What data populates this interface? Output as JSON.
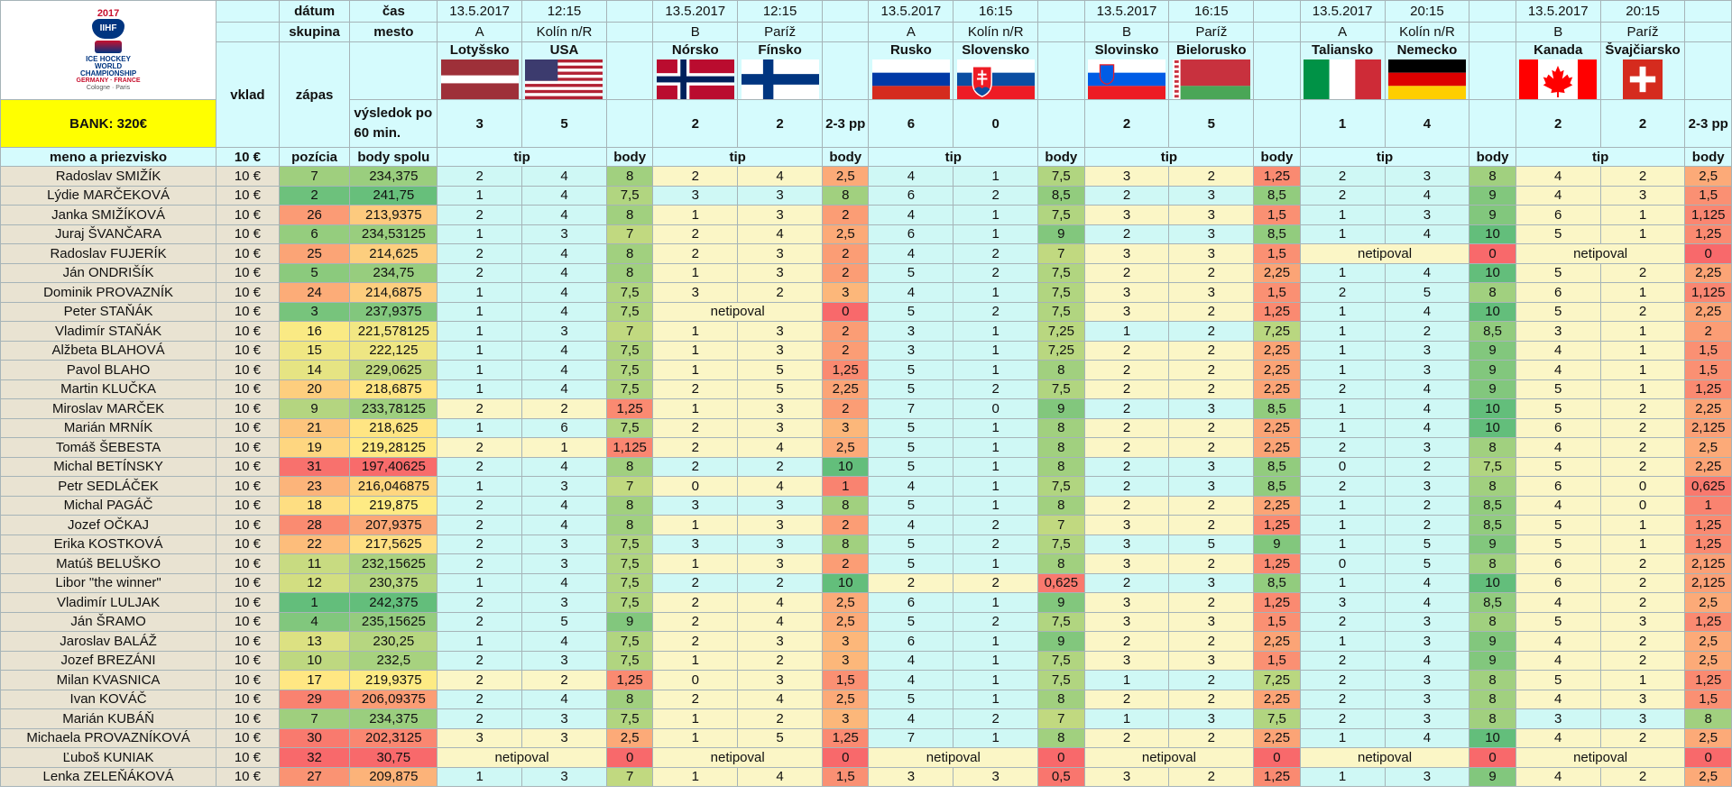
{
  "header": {
    "datum_label": "dátum",
    "cas_label": "čas",
    "skupina_label": "skupina",
    "mesto_label": "mesto",
    "vklad_label": "vklad",
    "zapas_label": "zápas",
    "vysledok_label": "výsledok po 60 min.",
    "bank_label": "BANK: 320€",
    "meno_label": "meno a priezvisko",
    "vklad_amount": "10 €",
    "pozicia_label": "pozícia",
    "body_spolu_label": "body spolu",
    "tip_label": "tip",
    "body_label": "body",
    "logo": {
      "year": "2017",
      "brand": "IIHF",
      "line1": "ICE HOCKEY",
      "line2": "WORLD",
      "line3": "CHAMPIONSHIP",
      "line4": "GERMANY · FRANCE",
      "line5": "Cologne · Paris"
    }
  },
  "colors": {
    "header_bg": "#d5fbfd",
    "bank_bg": "#ffff00",
    "name_bg": "#e9e3d2",
    "grid": "#a6b4b8"
  },
  "matches": [
    {
      "date": "13.5.2017",
      "time": "12:15",
      "group": "A",
      "city": "Kolín n/R",
      "team1": "Lotyšsko",
      "team2": "USA",
      "flag1": "latvia",
      "flag2": "usa",
      "score1": "3",
      "score2": "5",
      "extra": ""
    },
    {
      "date": "13.5.2017",
      "time": "12:15",
      "group": "B",
      "city": "Paríž",
      "team1": "Nórsko",
      "team2": "Fínsko",
      "flag1": "norway",
      "flag2": "finland",
      "score1": "2",
      "score2": "2",
      "extra": "2-3 pp"
    },
    {
      "date": "13.5.2017",
      "time": "16:15",
      "group": "A",
      "city": "Kolín n/R",
      "team1": "Rusko",
      "team2": "Slovensko",
      "flag1": "russia",
      "flag2": "slovakia",
      "score1": "6",
      "score2": "0",
      "extra": ""
    },
    {
      "date": "13.5.2017",
      "time": "16:15",
      "group": "B",
      "city": "Paríž",
      "team1": "Slovinsko",
      "team2": "Bielorusko",
      "flag1": "slovenia",
      "flag2": "belarus",
      "score1": "2",
      "score2": "5",
      "extra": ""
    },
    {
      "date": "13.5.2017",
      "time": "20:15",
      "group": "A",
      "city": "Kolín n/R",
      "team1": "Taliansko",
      "team2": "Nemecko",
      "flag1": "italy",
      "flag2": "germany",
      "score1": "1",
      "score2": "4",
      "extra": ""
    },
    {
      "date": "13.5.2017",
      "time": "20:15",
      "group": "B",
      "city": "Paríž",
      "team1": "Kanada",
      "team2": "Švajčiarsko",
      "flag1": "canada",
      "flag2": "switzerland",
      "score1": "2",
      "score2": "2",
      "extra": "2-3 pp"
    }
  ],
  "rows": [
    {
      "name": "Radoslav SMIŽÍK",
      "vklad": "10 €",
      "pos": "7",
      "total": "234,375",
      "tips": [
        [
          "2",
          "4",
          "8"
        ],
        [
          "2",
          "4",
          "2,5"
        ],
        [
          "4",
          "1",
          "7,5"
        ],
        [
          "3",
          "2",
          "1,25"
        ],
        [
          "2",
          "3",
          "8"
        ],
        [
          "4",
          "2",
          "2,5"
        ]
      ]
    },
    {
      "name": "Lýdie MARČEKOVÁ",
      "vklad": "10 €",
      "pos": "2",
      "total": "241,75",
      "tips": [
        [
          "1",
          "4",
          "7,5"
        ],
        [
          "3",
          "3",
          "8"
        ],
        [
          "6",
          "2",
          "8,5"
        ],
        [
          "2",
          "3",
          "8,5"
        ],
        [
          "2",
          "4",
          "9"
        ],
        [
          "4",
          "3",
          "1,5"
        ]
      ]
    },
    {
      "name": "Janka SMIŽÍKOVÁ",
      "vklad": "10 €",
      "pos": "26",
      "total": "213,9375",
      "tips": [
        [
          "2",
          "4",
          "8"
        ],
        [
          "1",
          "3",
          "2"
        ],
        [
          "4",
          "1",
          "7,5"
        ],
        [
          "3",
          "3",
          "1,5"
        ],
        [
          "1",
          "3",
          "9"
        ],
        [
          "6",
          "1",
          "1,125"
        ]
      ]
    },
    {
      "name": "Juraj ŠVANČARA",
      "vklad": "10 €",
      "pos": "6",
      "total": "234,53125",
      "tips": [
        [
          "1",
          "3",
          "7"
        ],
        [
          "2",
          "4",
          "2,5"
        ],
        [
          "6",
          "1",
          "9"
        ],
        [
          "2",
          "3",
          "8,5"
        ],
        [
          "1",
          "4",
          "10"
        ],
        [
          "5",
          "1",
          "1,25"
        ]
      ]
    },
    {
      "name": "Radoslav FUJERÍK",
      "vklad": "10 €",
      "pos": "25",
      "total": "214,625",
      "tips": [
        [
          "2",
          "4",
          "8"
        ],
        [
          "2",
          "3",
          "2"
        ],
        [
          "4",
          "2",
          "7"
        ],
        [
          "3",
          "3",
          "1,5"
        ],
        [
          "netipoval",
          "",
          "0"
        ],
        [
          "netipoval",
          "",
          "0"
        ]
      ]
    },
    {
      "name": "Ján ONDRIŠÍK",
      "vklad": "10 €",
      "pos": "5",
      "total": "234,75",
      "tips": [
        [
          "2",
          "4",
          "8"
        ],
        [
          "1",
          "3",
          "2"
        ],
        [
          "5",
          "2",
          "7,5"
        ],
        [
          "2",
          "2",
          "2,25"
        ],
        [
          "1",
          "4",
          "10"
        ],
        [
          "5",
          "2",
          "2,25"
        ]
      ]
    },
    {
      "name": "Dominik PROVAZNÍK",
      "vklad": "10 €",
      "pos": "24",
      "total": "214,6875",
      "tips": [
        [
          "1",
          "4",
          "7,5"
        ],
        [
          "3",
          "2",
          "3"
        ],
        [
          "4",
          "1",
          "7,5"
        ],
        [
          "3",
          "3",
          "1,5"
        ],
        [
          "2",
          "5",
          "8"
        ],
        [
          "6",
          "1",
          "1,125"
        ]
      ]
    },
    {
      "name": "Peter STAŇÁK",
      "vklad": "10 €",
      "pos": "3",
      "total": "237,9375",
      "tips": [
        [
          "1",
          "4",
          "7,5"
        ],
        [
          "netipoval",
          "",
          "0"
        ],
        [
          "5",
          "2",
          "7,5"
        ],
        [
          "3",
          "2",
          "1,25"
        ],
        [
          "1",
          "4",
          "10"
        ],
        [
          "5",
          "2",
          "2,25"
        ]
      ]
    },
    {
      "name": "Vladimír STAŇÁK",
      "vklad": "10 €",
      "pos": "16",
      "total": "221,578125",
      "tips": [
        [
          "1",
          "3",
          "7"
        ],
        [
          "1",
          "3",
          "2"
        ],
        [
          "3",
          "1",
          "7,25"
        ],
        [
          "1",
          "2",
          "7,25"
        ],
        [
          "1",
          "2",
          "8,5"
        ],
        [
          "3",
          "1",
          "2"
        ]
      ]
    },
    {
      "name": "Alžbeta BLAHOVÁ",
      "vklad": "10 €",
      "pos": "15",
      "total": "222,125",
      "tips": [
        [
          "1",
          "4",
          "7,5"
        ],
        [
          "1",
          "3",
          "2"
        ],
        [
          "3",
          "1",
          "7,25"
        ],
        [
          "2",
          "2",
          "2,25"
        ],
        [
          "1",
          "3",
          "9"
        ],
        [
          "4",
          "1",
          "1,5"
        ]
      ]
    },
    {
      "name": "Pavol BLAHO",
      "vklad": "10 €",
      "pos": "14",
      "total": "229,0625",
      "tips": [
        [
          "1",
          "4",
          "7,5"
        ],
        [
          "1",
          "5",
          "1,25"
        ],
        [
          "5",
          "1",
          "8"
        ],
        [
          "2",
          "2",
          "2,25"
        ],
        [
          "1",
          "3",
          "9"
        ],
        [
          "4",
          "1",
          "1,5"
        ]
      ]
    },
    {
      "name": "Martin KLUČKA",
      "vklad": "10 €",
      "pos": "20",
      "total": "218,6875",
      "tips": [
        [
          "1",
          "4",
          "7,5"
        ],
        [
          "2",
          "5",
          "2,25"
        ],
        [
          "5",
          "2",
          "7,5"
        ],
        [
          "2",
          "2",
          "2,25"
        ],
        [
          "2",
          "4",
          "9"
        ],
        [
          "5",
          "1",
          "1,25"
        ]
      ]
    },
    {
      "name": "Miroslav MARČEK",
      "vklad": "10 €",
      "pos": "9",
      "total": "233,78125",
      "tips": [
        [
          "2",
          "2",
          "1,25"
        ],
        [
          "1",
          "3",
          "2"
        ],
        [
          "7",
          "0",
          "9"
        ],
        [
          "2",
          "3",
          "8,5"
        ],
        [
          "1",
          "4",
          "10"
        ],
        [
          "5",
          "2",
          "2,25"
        ]
      ]
    },
    {
      "name": "Marián MRNÍK",
      "vklad": "10 €",
      "pos": "21",
      "total": "218,625",
      "tips": [
        [
          "1",
          "6",
          "7,5"
        ],
        [
          "2",
          "3",
          "3"
        ],
        [
          "5",
          "1",
          "8"
        ],
        [
          "2",
          "2",
          "2,25"
        ],
        [
          "1",
          "4",
          "10"
        ],
        [
          "6",
          "2",
          "2,125"
        ]
      ]
    },
    {
      "name": "Tomáš ŠEBESTA",
      "vklad": "10 €",
      "pos": "19",
      "total": "219,28125",
      "tips": [
        [
          "2",
          "1",
          "1,125"
        ],
        [
          "2",
          "4",
          "2,5"
        ],
        [
          "5",
          "1",
          "8"
        ],
        [
          "2",
          "2",
          "2,25"
        ],
        [
          "2",
          "3",
          "8"
        ],
        [
          "4",
          "2",
          "2,5"
        ]
      ]
    },
    {
      "name": "Michal BETÍNSKY",
      "vklad": "10 €",
      "pos": "31",
      "total": "197,40625",
      "tips": [
        [
          "2",
          "4",
          "8"
        ],
        [
          "2",
          "2",
          "10"
        ],
        [
          "5",
          "1",
          "8"
        ],
        [
          "2",
          "3",
          "8,5"
        ],
        [
          "0",
          "2",
          "7,5"
        ],
        [
          "5",
          "2",
          "2,25"
        ]
      ]
    },
    {
      "name": "Petr SEDLÁČEK",
      "vklad": "10 €",
      "pos": "23",
      "total": "216,046875",
      "tips": [
        [
          "1",
          "3",
          "7"
        ],
        [
          "0",
          "4",
          "1"
        ],
        [
          "4",
          "1",
          "7,5"
        ],
        [
          "2",
          "3",
          "8,5"
        ],
        [
          "2",
          "3",
          "8"
        ],
        [
          "6",
          "0",
          "0,625"
        ]
      ]
    },
    {
      "name": "Michal PAGÁČ",
      "vklad": "10 €",
      "pos": "18",
      "total": "219,875",
      "tips": [
        [
          "2",
          "4",
          "8"
        ],
        [
          "3",
          "3",
          "8"
        ],
        [
          "5",
          "1",
          "8"
        ],
        [
          "2",
          "2",
          "2,25"
        ],
        [
          "1",
          "2",
          "8,5"
        ],
        [
          "4",
          "0",
          "1"
        ]
      ]
    },
    {
      "name": "Jozef OČKAJ",
      "vklad": "10 €",
      "pos": "28",
      "total": "207,9375",
      "tips": [
        [
          "2",
          "4",
          "8"
        ],
        [
          "1",
          "3",
          "2"
        ],
        [
          "4",
          "2",
          "7"
        ],
        [
          "3",
          "2",
          "1,25"
        ],
        [
          "1",
          "2",
          "8,5"
        ],
        [
          "5",
          "1",
          "1,25"
        ]
      ]
    },
    {
      "name": "Erika KOSTKOVÁ",
      "vklad": "10 €",
      "pos": "22",
      "total": "217,5625",
      "tips": [
        [
          "2",
          "3",
          "7,5"
        ],
        [
          "3",
          "3",
          "8"
        ],
        [
          "5",
          "2",
          "7,5"
        ],
        [
          "3",
          "5",
          "9"
        ],
        [
          "1",
          "5",
          "9"
        ],
        [
          "5",
          "1",
          "1,25"
        ]
      ]
    },
    {
      "name": "Matúš BELUŠKO",
      "vklad": "10 €",
      "pos": "11",
      "total": "232,15625",
      "tips": [
        [
          "2",
          "3",
          "7,5"
        ],
        [
          "1",
          "3",
          "2"
        ],
        [
          "5",
          "1",
          "8"
        ],
        [
          "3",
          "2",
          "1,25"
        ],
        [
          "0",
          "5",
          "8"
        ],
        [
          "6",
          "2",
          "2,125"
        ]
      ]
    },
    {
      "name": "Libor \"the winner\"",
      "vklad": "10 €",
      "pos": "12",
      "total": "230,375",
      "tips": [
        [
          "1",
          "4",
          "7,5"
        ],
        [
          "2",
          "2",
          "10"
        ],
        [
          "2",
          "2",
          "0,625"
        ],
        [
          "2",
          "3",
          "8,5"
        ],
        [
          "1",
          "4",
          "10"
        ],
        [
          "6",
          "2",
          "2,125"
        ]
      ]
    },
    {
      "name": "Vladimír LULJAK",
      "vklad": "10 €",
      "pos": "1",
      "total": "242,375",
      "tips": [
        [
          "2",
          "3",
          "7,5"
        ],
        [
          "2",
          "4",
          "2,5"
        ],
        [
          "6",
          "1",
          "9"
        ],
        [
          "3",
          "2",
          "1,25"
        ],
        [
          "3",
          "4",
          "8,5"
        ],
        [
          "4",
          "2",
          "2,5"
        ]
      ]
    },
    {
      "name": "Ján ŠRAMO",
      "vklad": "10 €",
      "pos": "4",
      "total": "235,15625",
      "tips": [
        [
          "2",
          "5",
          "9"
        ],
        [
          "2",
          "4",
          "2,5"
        ],
        [
          "5",
          "2",
          "7,5"
        ],
        [
          "3",
          "3",
          "1,5"
        ],
        [
          "2",
          "3",
          "8"
        ],
        [
          "5",
          "3",
          "1,25"
        ]
      ]
    },
    {
      "name": "Jaroslav BALÁŽ",
      "vklad": "10 €",
      "pos": "13",
      "total": "230,25",
      "tips": [
        [
          "1",
          "4",
          "7,5"
        ],
        [
          "2",
          "3",
          "3"
        ],
        [
          "6",
          "1",
          "9"
        ],
        [
          "2",
          "2",
          "2,25"
        ],
        [
          "1",
          "3",
          "9"
        ],
        [
          "4",
          "2",
          "2,5"
        ]
      ]
    },
    {
      "name": "Jozef BREZÁNI",
      "vklad": "10 €",
      "pos": "10",
      "total": "232,5",
      "tips": [
        [
          "2",
          "3",
          "7,5"
        ],
        [
          "1",
          "2",
          "3"
        ],
        [
          "4",
          "1",
          "7,5"
        ],
        [
          "3",
          "3",
          "1,5"
        ],
        [
          "2",
          "4",
          "9"
        ],
        [
          "4",
          "2",
          "2,5"
        ]
      ]
    },
    {
      "name": "Milan KVASNICA",
      "vklad": "10 €",
      "pos": "17",
      "total": "219,9375",
      "tips": [
        [
          "2",
          "2",
          "1,25"
        ],
        [
          "0",
          "3",
          "1,5"
        ],
        [
          "4",
          "1",
          "7,5"
        ],
        [
          "1",
          "2",
          "7,25"
        ],
        [
          "2",
          "3",
          "8"
        ],
        [
          "5",
          "1",
          "1,25"
        ]
      ]
    },
    {
      "name": "Ivan KOVÁČ",
      "vklad": "10 €",
      "pos": "29",
      "total": "206,09375",
      "tips": [
        [
          "2",
          "4",
          "8"
        ],
        [
          "2",
          "4",
          "2,5"
        ],
        [
          "5",
          "1",
          "8"
        ],
        [
          "2",
          "2",
          "2,25"
        ],
        [
          "2",
          "3",
          "8"
        ],
        [
          "4",
          "3",
          "1,5"
        ]
      ]
    },
    {
      "name": "Marián KUBÁŇ",
      "vklad": "10 €",
      "pos": "7",
      "total": "234,375",
      "tips": [
        [
          "2",
          "3",
          "7,5"
        ],
        [
          "1",
          "2",
          "3"
        ],
        [
          "4",
          "2",
          "7"
        ],
        [
          "1",
          "3",
          "7,5"
        ],
        [
          "2",
          "3",
          "8"
        ],
        [
          "3",
          "3",
          "8"
        ]
      ]
    },
    {
      "name": "Michaela PROVAZNÍKOVÁ",
      "vklad": "10 €",
      "pos": "30",
      "total": "202,3125",
      "tips": [
        [
          "3",
          "3",
          "2,5"
        ],
        [
          "1",
          "5",
          "1,25"
        ],
        [
          "7",
          "1",
          "8"
        ],
        [
          "2",
          "2",
          "2,25"
        ],
        [
          "1",
          "4",
          "10"
        ],
        [
          "4",
          "2",
          "2,5"
        ]
      ]
    },
    {
      "name": "Ľuboš KUNIAK",
      "vklad": "10 €",
      "pos": "32",
      "total": "30,75",
      "tips": [
        [
          "netipoval",
          "",
          "0"
        ],
        [
          "netipoval",
          "",
          "0"
        ],
        [
          "netipoval",
          "",
          "0"
        ],
        [
          "netipoval",
          "",
          "0"
        ],
        [
          "netipoval",
          "",
          "0"
        ],
        [
          "netipoval",
          "",
          "0"
        ]
      ]
    },
    {
      "name": "Lenka ZELEŇÁKOVÁ",
      "vklad": "10 €",
      "pos": "27",
      "total": "209,875",
      "tips": [
        [
          "1",
          "3",
          "7"
        ],
        [
          "1",
          "4",
          "1,5"
        ],
        [
          "3",
          "3",
          "0,5"
        ],
        [
          "3",
          "2",
          "1,25"
        ],
        [
          "1",
          "3",
          "9"
        ],
        [
          "4",
          "2",
          "2,5"
        ]
      ]
    }
  ]
}
